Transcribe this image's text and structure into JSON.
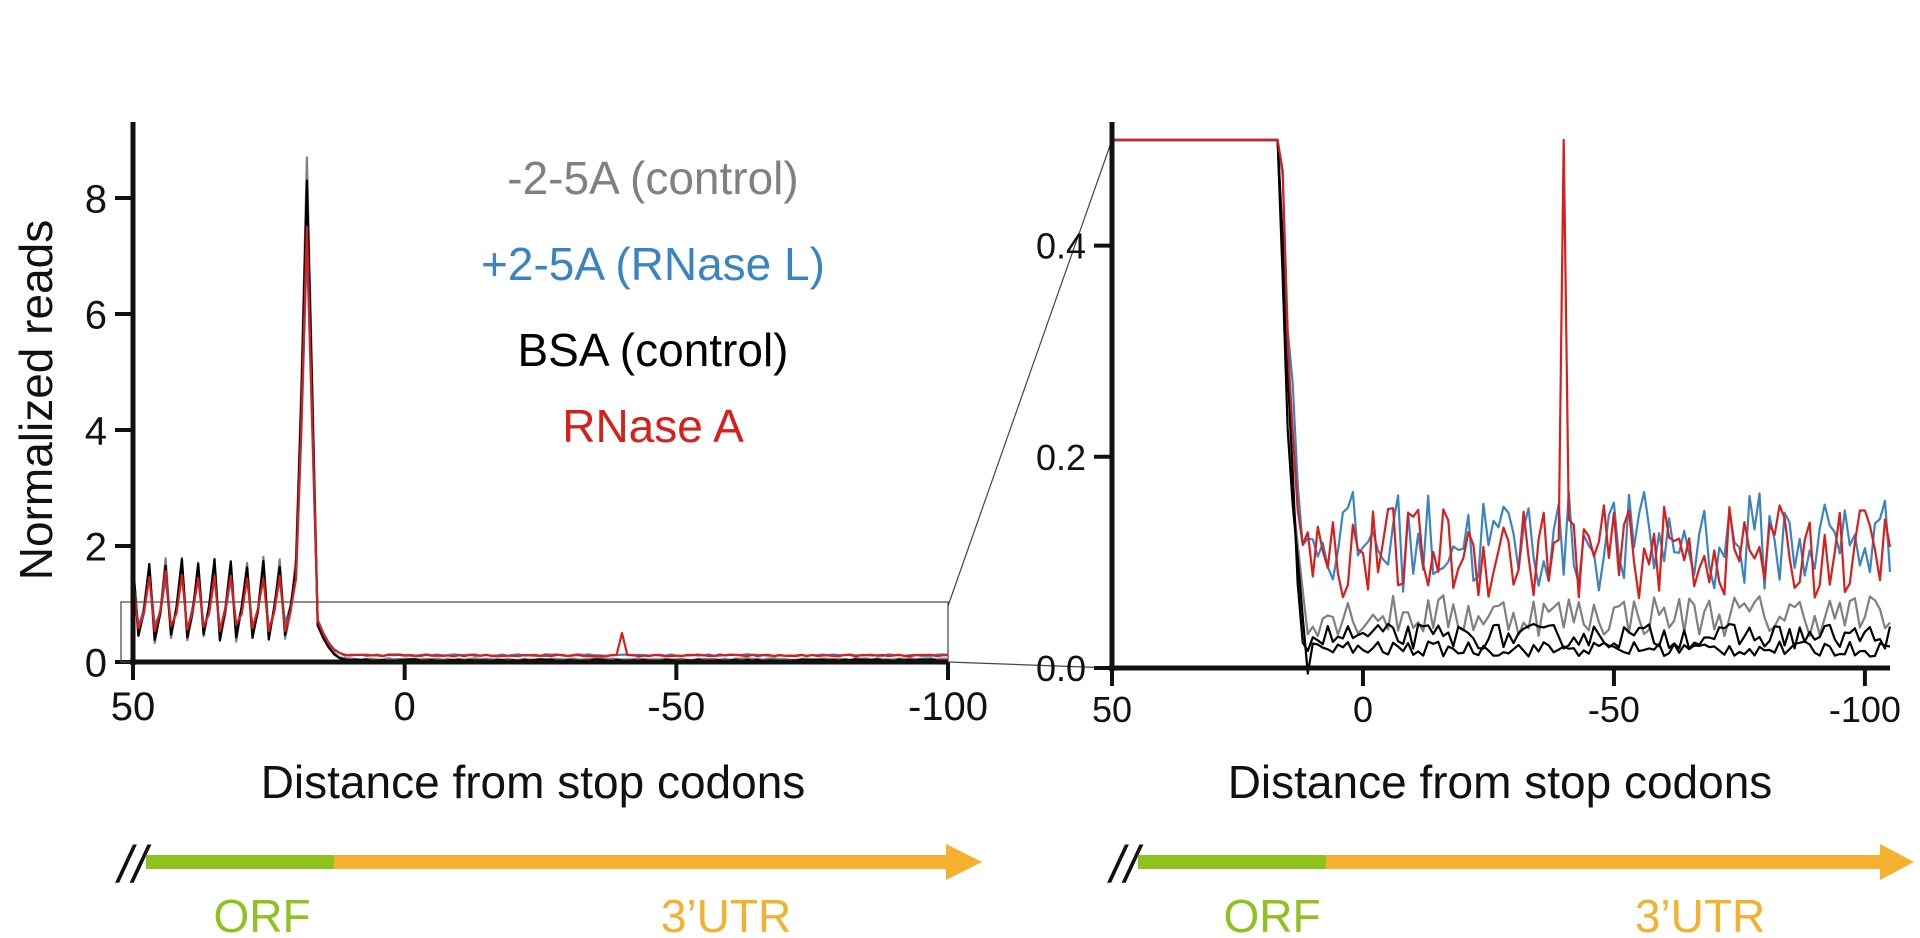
{
  "colors": {
    "control_2_5A": "#808080",
    "rnase_l": "#3a84c4",
    "bsa": "#000000",
    "rnase_a": "#d7201c",
    "orf": "#8dc21f",
    "utr": "#f5b02e",
    "axis": "#111111"
  },
  "legend": [
    {
      "label": "-2-5A (control)",
      "color": "#808080"
    },
    {
      "label": "+2-5A (RNase L)",
      "color": "#3a84c4"
    },
    {
      "label": "BSA (control)",
      "color": "#000000"
    },
    {
      "label": "RNase A",
      "color": "#d7201c"
    }
  ],
  "gene_diagram": {
    "orf_label": "ORF",
    "utr_label": "3’UTR",
    "break_symbol": "//"
  },
  "chart_data": [
    {
      "type": "line",
      "name": "full-view",
      "title": "",
      "xlabel": "Distance from stop codons",
      "ylabel": "Normalized reads",
      "xlim": [
        50,
        -100
      ],
      "ylim": [
        0,
        9
      ],
      "xticks": [
        50,
        0,
        -50,
        -100
      ],
      "xtick_labels": [
        "50",
        "0",
        "-50",
        "-100"
      ],
      "yticks": [
        0,
        2,
        4,
        6,
        8
      ],
      "ytick_labels": [
        "0",
        "2",
        "4",
        "6",
        "8"
      ],
      "zoom_box": {
        "x": [
          50,
          -100
        ],
        "y": [
          0,
          1
        ]
      },
      "series": [
        {
          "name": "-2-5A (control)",
          "color": "#808080",
          "baseline": 0.05,
          "peak": 8.7,
          "period_amp": 0.75
        },
        {
          "name": "+2-5A (RNase L)",
          "color": "#3a84c4",
          "baseline": 0.12,
          "peak": 7.2,
          "period_amp": 0.5
        },
        {
          "name": "BSA (control)",
          "color": "#000000",
          "baseline": 0.03,
          "peak": 8.3,
          "period_amp": 0.7
        },
        {
          "name": "RNase A",
          "color": "#d7201c",
          "baseline": 0.11,
          "peak": 7.5,
          "period_amp": 0.5,
          "spike_at": -40,
          "spike_value": 0.5
        }
      ]
    },
    {
      "type": "line",
      "name": "zoom-view",
      "title": "",
      "xlabel": "Distance from stop codons",
      "ylabel": "",
      "xlim": [
        50,
        -105
      ],
      "ylim": [
        0,
        0.5
      ],
      "xticks": [
        50,
        0,
        -50,
        -100
      ],
      "xtick_labels": [
        "50",
        "0",
        "-50",
        "-100"
      ],
      "yticks": [
        0.0,
        0.2,
        0.4
      ],
      "ytick_labels": [
        "0.0",
        "0.2",
        "0.4"
      ],
      "series": [
        {
          "name": "-2-5A (control)",
          "color": "#808080",
          "baseline": 0.05
        },
        {
          "name": "+2-5A (RNase L)",
          "color": "#3a84c4",
          "baseline": 0.12
        },
        {
          "name": "BSA (control)",
          "color": "#000000",
          "baseline": 0.03
        },
        {
          "name": "BSA (control) replicate",
          "color": "#000000",
          "baseline": 0.018
        },
        {
          "name": "RNase A",
          "color": "#d7201c",
          "baseline": 0.11,
          "spike_at": -40,
          "spike_value": 0.5
        }
      ]
    }
  ]
}
